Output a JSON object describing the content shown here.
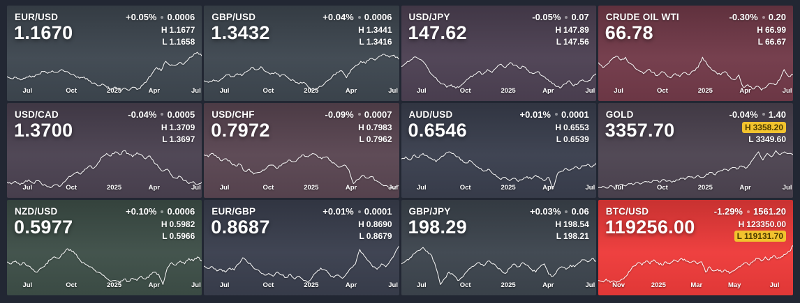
{
  "labels": {
    "high_prefix": "H",
    "low_prefix": "L"
  },
  "chart_data": [
    {
      "type": "line",
      "symbol": "EUR/USD",
      "change_pct": "+0.05%",
      "change_abs": "0.0006",
      "price": "1.1670",
      "high": "1.1677",
      "low": "1.1658",
      "high_highlight": false,
      "low_highlight": false,
      "bg": "#3e4750",
      "xticks": [
        {
          "label": "Jul",
          "x": 10.5
        },
        {
          "label": "Oct",
          "x": 33
        },
        {
          "label": "2025",
          "x": 55
        },
        {
          "label": "Apr",
          "x": 75.5
        },
        {
          "label": "Jul",
          "x": 97
        }
      ],
      "values_norm": [
        0.38,
        0.33,
        0.36,
        0.3,
        0.34,
        0.4,
        0.37,
        0.44,
        0.5,
        0.46,
        0.52,
        0.48,
        0.55,
        0.5,
        0.44,
        0.4,
        0.34,
        0.37,
        0.28,
        0.22,
        0.16,
        0.2,
        0.12,
        0.08,
        0.12,
        0.06,
        0.1,
        0.05,
        0.12,
        0.08,
        0.18,
        0.3,
        0.45,
        0.6,
        0.52,
        0.75,
        0.65,
        0.65,
        0.72,
        0.68,
        0.8,
        0.88,
        0.97,
        0.88
      ]
    },
    {
      "type": "line",
      "symbol": "GBP/USD",
      "change_pct": "+0.04%",
      "change_abs": "0.0006",
      "price": "1.3432",
      "high": "1.3441",
      "low": "1.3416",
      "high_highlight": false,
      "low_highlight": false,
      "bg": "#3e4750",
      "xticks": [
        {
          "label": "Jul",
          "x": 10.5
        },
        {
          "label": "Oct",
          "x": 33
        },
        {
          "label": "2025",
          "x": 55
        },
        {
          "label": "Apr",
          "x": 75.5
        },
        {
          "label": "Jul",
          "x": 97
        }
      ],
      "values_norm": [
        0.28,
        0.24,
        0.3,
        0.26,
        0.34,
        0.42,
        0.38,
        0.45,
        0.4,
        0.5,
        0.6,
        0.54,
        0.62,
        0.5,
        0.44,
        0.48,
        0.38,
        0.42,
        0.32,
        0.28,
        0.2,
        0.24,
        0.12,
        0.05,
        0.1,
        0.16,
        0.28,
        0.38,
        0.48,
        0.52,
        0.35,
        0.55,
        0.65,
        0.75,
        0.7,
        0.82,
        0.78,
        0.88,
        0.92,
        0.85,
        0.9,
        0.8
      ]
    },
    {
      "type": "line",
      "symbol": "USD/JPY",
      "change_pct": "-0.05%",
      "change_abs": "0.07",
      "price": "147.62",
      "high": "147.89",
      "low": "147.56",
      "high_highlight": false,
      "low_highlight": false,
      "bg": "#4d4153",
      "xticks": [
        {
          "label": "Jul",
          "x": 10.5
        },
        {
          "label": "Oct",
          "x": 33
        },
        {
          "label": "2025",
          "x": 55
        },
        {
          "label": "Apr",
          "x": 75.5
        },
        {
          "label": "Jul",
          "x": 97
        }
      ],
      "values_norm": [
        0.62,
        0.7,
        0.78,
        0.86,
        0.8,
        0.72,
        0.55,
        0.4,
        0.28,
        0.2,
        0.12,
        0.18,
        0.1,
        0.15,
        0.25,
        0.35,
        0.42,
        0.5,
        0.44,
        0.55,
        0.48,
        0.6,
        0.68,
        0.6,
        0.72,
        0.66,
        0.58,
        0.62,
        0.52,
        0.45,
        0.5,
        0.4,
        0.32,
        0.25,
        0.15,
        0.1,
        0.2,
        0.28,
        0.15,
        0.22,
        0.3,
        0.25,
        0.35,
        0.45
      ]
    },
    {
      "type": "line",
      "symbol": "CRUDE OIL WTI",
      "change_pct": "-0.30%",
      "change_abs": "0.20",
      "price": "66.78",
      "high": "66.99",
      "low": "66.67",
      "high_highlight": false,
      "low_highlight": false,
      "bg": "#723a49",
      "xticks": [
        {
          "label": "Jul",
          "x": 10.5
        },
        {
          "label": "Oct",
          "x": 33
        },
        {
          "label": "2025",
          "x": 55
        },
        {
          "label": "Apr",
          "x": 75.5
        },
        {
          "label": "Jul",
          "x": 97
        }
      ],
      "values_norm": [
        0.72,
        0.6,
        0.68,
        0.8,
        0.88,
        0.78,
        0.85,
        0.7,
        0.6,
        0.52,
        0.45,
        0.55,
        0.48,
        0.4,
        0.5,
        0.42,
        0.35,
        0.45,
        0.38,
        0.48,
        0.42,
        0.52,
        0.6,
        0.85,
        0.68,
        0.55,
        0.48,
        0.42,
        0.5,
        0.38,
        0.3,
        0.42,
        0.12,
        0.18,
        0.08,
        0.15,
        0.05,
        0.12,
        0.22,
        0.18,
        0.3,
        0.55,
        0.38,
        0.42
      ]
    },
    {
      "type": "line",
      "symbol": "USD/CAD",
      "change_pct": "-0.04%",
      "change_abs": "0.0005",
      "price": "1.3700",
      "high": "1.3709",
      "low": "1.3697",
      "high_highlight": false,
      "low_highlight": false,
      "bg": "#4b4251",
      "xticks": [
        {
          "label": "Jul",
          "x": 10.5
        },
        {
          "label": "Oct",
          "x": 33
        },
        {
          "label": "2025",
          "x": 55
        },
        {
          "label": "Apr",
          "x": 75.5
        },
        {
          "label": "Jul",
          "x": 97
        }
      ],
      "values_norm": [
        0.18,
        0.14,
        0.2,
        0.12,
        0.18,
        0.24,
        0.16,
        0.22,
        0.14,
        0.1,
        0.05,
        0.12,
        0.08,
        0.18,
        0.28,
        0.35,
        0.42,
        0.38,
        0.5,
        0.58,
        0.52,
        0.65,
        0.8,
        0.88,
        0.82,
        0.92,
        0.85,
        0.95,
        0.88,
        0.8,
        0.9,
        0.85,
        0.75,
        0.82,
        0.65,
        0.55,
        0.45,
        0.5,
        0.35,
        0.28,
        0.32,
        0.22,
        0.15,
        0.2,
        0.12,
        0.18
      ]
    },
    {
      "type": "line",
      "symbol": "USD/CHF",
      "change_pct": "-0.09%",
      "change_abs": "0.0007",
      "price": "0.7972",
      "high": "0.7983",
      "low": "0.7962",
      "high_highlight": false,
      "low_highlight": false,
      "bg": "#5a4652",
      "xticks": [
        {
          "label": "Jul",
          "x": 10.5
        },
        {
          "label": "Oct",
          "x": 33
        },
        {
          "label": "2025",
          "x": 55
        },
        {
          "label": "Apr",
          "x": 75.5
        },
        {
          "label": "Jul",
          "x": 97
        }
      ],
      "values_norm": [
        0.85,
        0.8,
        0.88,
        0.78,
        0.7,
        0.75,
        0.65,
        0.58,
        0.62,
        0.45,
        0.5,
        0.38,
        0.42,
        0.48,
        0.55,
        0.6,
        0.52,
        0.58,
        0.65,
        0.72,
        0.68,
        0.78,
        0.85,
        0.8,
        0.88,
        0.82,
        0.75,
        0.8,
        0.7,
        0.62,
        0.55,
        0.6,
        0.48,
        0.15,
        0.25,
        0.35,
        0.28,
        0.32,
        0.22,
        0.15,
        0.1,
        0.05,
        0.02,
        0.1
      ]
    },
    {
      "type": "line",
      "symbol": "AUD/USD",
      "change_pct": "+0.01%",
      "change_abs": "0.0001",
      "price": "0.6546",
      "high": "0.6553",
      "low": "0.6539",
      "high_highlight": false,
      "low_highlight": false,
      "bg": "#3a3f4e",
      "xticks": [
        {
          "label": "Jul",
          "x": 10.5
        },
        {
          "label": "Oct",
          "x": 33
        },
        {
          "label": "2025",
          "x": 55
        },
        {
          "label": "Apr",
          "x": 75.5
        },
        {
          "label": "Jul",
          "x": 97
        }
      ],
      "values_norm": [
        0.75,
        0.8,
        0.72,
        0.85,
        0.78,
        0.88,
        0.82,
        0.75,
        0.68,
        0.78,
        0.85,
        0.92,
        0.88,
        0.8,
        0.72,
        0.65,
        0.7,
        0.6,
        0.52,
        0.45,
        0.5,
        0.4,
        0.32,
        0.25,
        0.3,
        0.22,
        0.28,
        0.2,
        0.25,
        0.32,
        0.26,
        0.35,
        0.28,
        0.22,
        0.3,
        0.02,
        0.38,
        0.45,
        0.52,
        0.48,
        0.55,
        0.5,
        0.58,
        0.62,
        0.55,
        0.65
      ]
    },
    {
      "type": "line",
      "symbol": "GOLD",
      "change_pct": "-0.04%",
      "change_abs": "1.40",
      "price": "3357.70",
      "high": "3358.20",
      "low": "3349.60",
      "high_highlight": true,
      "low_highlight": false,
      "bg": "#4d4451",
      "xticks": [
        {
          "label": "Jul",
          "x": 10.5
        },
        {
          "label": "Oct",
          "x": 33
        },
        {
          "label": "2025",
          "x": 55
        },
        {
          "label": "Apr",
          "x": 75.5
        },
        {
          "label": "Jul",
          "x": 97
        }
      ],
      "values_norm": [
        0.05,
        0.08,
        0.04,
        0.1,
        0.07,
        0.12,
        0.1,
        0.15,
        0.12,
        0.18,
        0.15,
        0.2,
        0.17,
        0.22,
        0.19,
        0.25,
        0.21,
        0.18,
        0.24,
        0.28,
        0.25,
        0.32,
        0.28,
        0.35,
        0.3,
        0.38,
        0.42,
        0.36,
        0.45,
        0.5,
        0.46,
        0.54,
        0.5,
        0.58,
        0.52,
        0.62,
        0.78,
        0.92,
        0.72,
        0.88,
        0.8,
        0.95,
        0.85,
        0.92,
        0.88,
        0.85
      ]
    },
    {
      "type": "line",
      "symbol": "NZD/USD",
      "change_pct": "+0.10%",
      "change_abs": "0.0006",
      "price": "0.5977",
      "high": "0.5982",
      "low": "0.5966",
      "high_highlight": false,
      "low_highlight": false,
      "bg": "#3e4f48",
      "xticks": [
        {
          "label": "Jul",
          "x": 10.5
        },
        {
          "label": "Oct",
          "x": 33
        },
        {
          "label": "2025",
          "x": 55
        },
        {
          "label": "Apr",
          "x": 75.5
        },
        {
          "label": "Jul",
          "x": 97
        }
      ],
      "values_norm": [
        0.6,
        0.55,
        0.62,
        0.52,
        0.58,
        0.5,
        0.42,
        0.35,
        0.45,
        0.55,
        0.65,
        0.72,
        0.68,
        0.8,
        0.92,
        0.85,
        0.78,
        0.62,
        0.55,
        0.48,
        0.42,
        0.35,
        0.28,
        0.2,
        0.12,
        0.15,
        0.1,
        0.18,
        0.12,
        0.2,
        0.15,
        0.25,
        0.18,
        0.28,
        0.35,
        0.3,
        0.05,
        0.45,
        0.58,
        0.52,
        0.62,
        0.55,
        0.68,
        0.62,
        0.72,
        0.62
      ]
    },
    {
      "type": "line",
      "symbol": "EUR/GBP",
      "change_pct": "+0.01%",
      "change_abs": "0.0001",
      "price": "0.8687",
      "high": "0.8690",
      "low": "0.8679",
      "high_highlight": false,
      "low_highlight": false,
      "bg": "#3a3f4e",
      "xticks": [
        {
          "label": "Jul",
          "x": 10.5
        },
        {
          "label": "Oct",
          "x": 33
        },
        {
          "label": "2025",
          "x": 55
        },
        {
          "label": "Apr",
          "x": 75.5
        },
        {
          "label": "Jul",
          "x": 97
        }
      ],
      "values_norm": [
        0.5,
        0.44,
        0.48,
        0.38,
        0.42,
        0.35,
        0.45,
        0.4,
        0.55,
        0.7,
        0.6,
        0.52,
        0.42,
        0.35,
        0.28,
        0.32,
        0.25,
        0.35,
        0.28,
        0.22,
        0.3,
        0.18,
        0.25,
        0.15,
        0.1,
        0.22,
        0.35,
        0.45,
        0.4,
        0.3,
        0.22,
        0.28,
        0.2,
        0.32,
        0.45,
        0.55,
        0.9,
        0.75,
        0.62,
        0.48,
        0.42,
        0.55,
        0.48,
        0.62,
        0.78,
        0.98
      ]
    },
    {
      "type": "line",
      "symbol": "GBP/JPY",
      "change_pct": "+0.03%",
      "change_abs": "0.06",
      "price": "198.29",
      "high": "198.54",
      "low": "198.21",
      "high_highlight": false,
      "low_highlight": false,
      "bg": "#3d454e",
      "xticks": [
        {
          "label": "Jul",
          "x": 10.5
        },
        {
          "label": "Oct",
          "x": 33
        },
        {
          "label": "2025",
          "x": 55
        },
        {
          "label": "Apr",
          "x": 75.5
        },
        {
          "label": "Jul",
          "x": 97
        }
      ],
      "values_norm": [
        0.55,
        0.62,
        0.7,
        0.8,
        0.88,
        0.95,
        0.85,
        0.75,
        0.45,
        0.05,
        0.2,
        0.35,
        0.28,
        0.15,
        0.22,
        0.35,
        0.45,
        0.52,
        0.58,
        0.5,
        0.62,
        0.55,
        0.48,
        0.4,
        0.32,
        0.45,
        0.55,
        0.48,
        0.58,
        0.52,
        0.42,
        0.35,
        0.48,
        0.55,
        0.3,
        0.25,
        0.4,
        0.48,
        0.42,
        0.52,
        0.48,
        0.58,
        0.65,
        0.6,
        0.68,
        0.62
      ]
    },
    {
      "type": "line",
      "symbol": "BTC/USD",
      "change_pct": "-1.29%",
      "change_abs": "1561.20",
      "price": "119256.00",
      "high": "123350.00",
      "low": "119131.70",
      "high_highlight": false,
      "low_highlight": true,
      "bg": "#ee3b3a",
      "xticks": [
        {
          "label": "Nov",
          "x": 10.5
        },
        {
          "label": "2025",
          "x": 31
        },
        {
          "label": "Mar",
          "x": 50.5
        },
        {
          "label": "May",
          "x": 70
        },
        {
          "label": "Jul",
          "x": 90.5
        }
      ],
      "values_norm": [
        0.15,
        0.12,
        0.18,
        0.1,
        0.14,
        0.12,
        0.18,
        0.25,
        0.38,
        0.5,
        0.58,
        0.52,
        0.62,
        0.55,
        0.65,
        0.58,
        0.52,
        0.6,
        0.55,
        0.65,
        0.6,
        0.68,
        0.62,
        0.58,
        0.62,
        0.55,
        0.6,
        0.35,
        0.48,
        0.38,
        0.42,
        0.35,
        0.4,
        0.32,
        0.38,
        0.45,
        0.52,
        0.58,
        0.52,
        0.62,
        0.68,
        0.62,
        0.72,
        0.65,
        0.75,
        0.68,
        0.72,
        0.78,
        0.85,
        1.0
      ]
    }
  ]
}
